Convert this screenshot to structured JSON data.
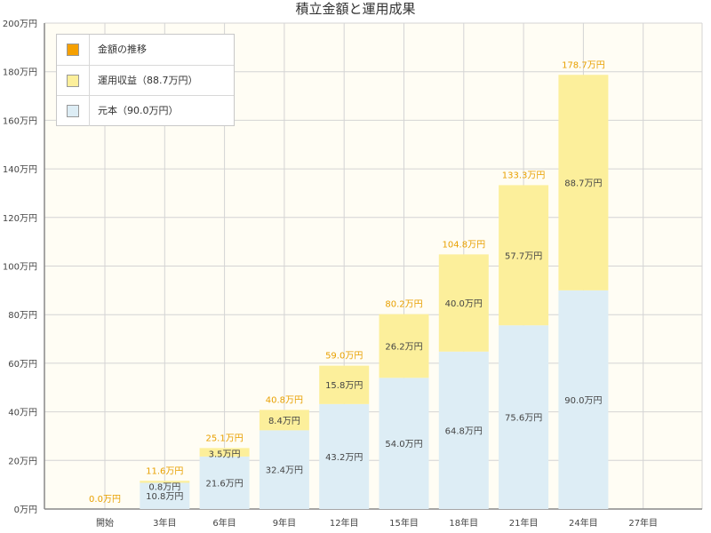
{
  "chart_data": {
    "type": "bar",
    "title": "積立金額と運用成果",
    "categories": [
      "開始",
      "3年目",
      "6年目",
      "9年目",
      "12年目",
      "15年目",
      "18年目",
      "21年目",
      "24年目",
      "27年目"
    ],
    "series": [
      {
        "name": "元本（90.0万円）",
        "color": "#ddedf5",
        "values": [
          0,
          10.8,
          21.6,
          32.4,
          43.2,
          54.0,
          64.8,
          75.6,
          90.0,
          null
        ],
        "labels": [
          "",
          "10.8万円",
          "21.6万円",
          "32.4万円",
          "43.2万円",
          "54.0万円",
          "64.8万円",
          "75.6万円",
          "90.0万円",
          ""
        ]
      },
      {
        "name": "運用収益（88.7万円）",
        "color": "#fcef9b",
        "values": [
          0,
          0.8,
          3.5,
          8.4,
          15.8,
          26.2,
          40.0,
          57.7,
          88.7,
          null
        ],
        "labels": [
          "",
          "0.8万円",
          "3.5万円",
          "8.4万円",
          "15.8万円",
          "26.2万円",
          "40.0万円",
          "57.7万円",
          "88.7万円",
          ""
        ]
      }
    ],
    "line_series": {
      "name": "金額の推移",
      "color": "#f5a000"
    },
    "totals": [
      0.0,
      11.6,
      25.1,
      40.8,
      59.0,
      80.2,
      104.8,
      133.3,
      178.7,
      null
    ],
    "total_labels": [
      "0.0万円",
      "11.6万円",
      "25.1万円",
      "40.8万円",
      "59.0万円",
      "80.2万円",
      "104.8万円",
      "133.3万円",
      "178.7万円",
      ""
    ],
    "total_label_color": "#e8a000",
    "y_ticks": [
      "0万円",
      "20万円",
      "40万円",
      "60万円",
      "80万円",
      "100万円",
      "120万円",
      "140万円",
      "160万円",
      "180万円",
      "200万円"
    ],
    "ylim": [
      0,
      200
    ],
    "y_tick_step": 20,
    "grid": true,
    "plot_background": "#fffdf4",
    "legend_position": "top-left"
  }
}
